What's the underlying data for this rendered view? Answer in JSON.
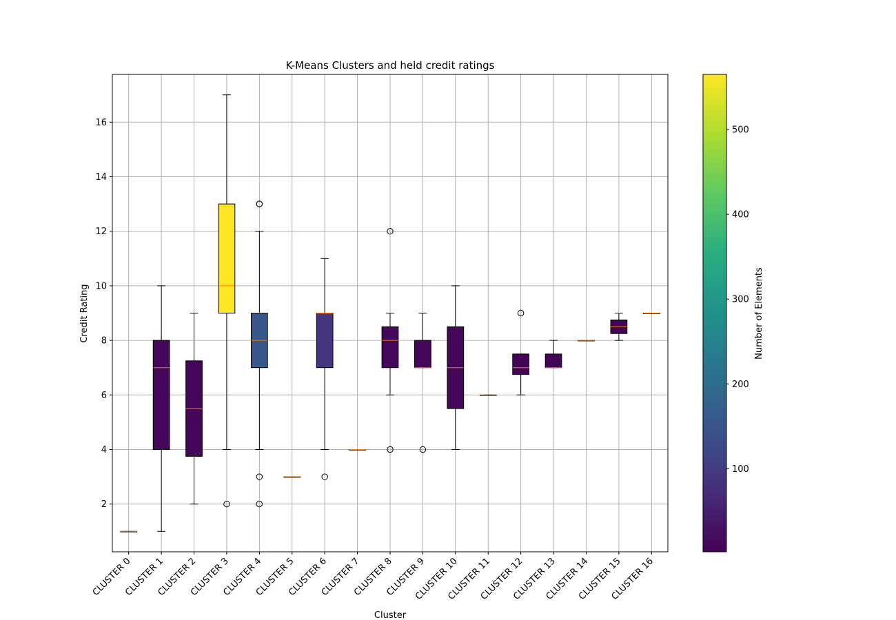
{
  "chart_data": {
    "type": "box",
    "title": "K-Means Clusters and held credit ratings",
    "xlabel": "Cluster",
    "ylabel": "Credit Rating",
    "ylim": [
      0.25,
      17.75
    ],
    "yticks": [
      2,
      4,
      6,
      8,
      10,
      12,
      14,
      16
    ],
    "grid": true,
    "categories": [
      "CLUSTER 0",
      "CLUSTER 1",
      "CLUSTER 2",
      "CLUSTER 3",
      "CLUSTER 4",
      "CLUSTER 5",
      "CLUSTER 6",
      "CLUSTER 7",
      "CLUSTER 8",
      "CLUSTER 9",
      "CLUSTER 10",
      "CLUSTER 11",
      "CLUSTER 12",
      "CLUSTER 13",
      "CLUSTER 14",
      "CLUSTER 15",
      "CLUSTER 16"
    ],
    "boxes": [
      {
        "whislo": 1,
        "q1": 1,
        "med": 1,
        "q3": 1,
        "whishi": 1,
        "fliers": [],
        "count": 5
      },
      {
        "whislo": 1,
        "q1": 4,
        "med": 7,
        "q3": 8,
        "whishi": 10,
        "fliers": [],
        "count": 10
      },
      {
        "whislo": 2,
        "q1": 3.75,
        "med": 5.5,
        "q3": 7.25,
        "whishi": 9,
        "fliers": [],
        "count": 10
      },
      {
        "whislo": 4,
        "q1": 9,
        "med": 10,
        "q3": 13,
        "whishi": 17,
        "fliers": [
          2
        ],
        "count": 565
      },
      {
        "whislo": 4,
        "q1": 7,
        "med": 8,
        "q3": 9,
        "whishi": 12,
        "fliers": [
          13,
          13,
          3,
          2
        ],
        "count": 155
      },
      {
        "whislo": 3,
        "q1": 3,
        "med": 3,
        "q3": 3,
        "whishi": 3,
        "fliers": [],
        "count": 5
      },
      {
        "whislo": 4,
        "q1": 7,
        "med": 9,
        "q3": 9,
        "whishi": 11,
        "fliers": [
          3
        ],
        "count": 85
      },
      {
        "whislo": 4,
        "q1": 4,
        "med": 4,
        "q3": 4,
        "whishi": 4,
        "fliers": [],
        "count": 5
      },
      {
        "whislo": 6,
        "q1": 7,
        "med": 8,
        "q3": 8.5,
        "whishi": 9,
        "fliers": [
          12,
          4
        ],
        "count": 12
      },
      {
        "whislo": 7,
        "q1": 7,
        "med": 7,
        "q3": 8,
        "whishi": 9,
        "fliers": [
          4
        ],
        "count": 10
      },
      {
        "whislo": 4,
        "q1": 5.5,
        "med": 7,
        "q3": 8.5,
        "whishi": 10,
        "fliers": [],
        "count": 10
      },
      {
        "whislo": 6,
        "q1": 6,
        "med": 6,
        "q3": 6,
        "whishi": 6,
        "fliers": [],
        "count": 5
      },
      {
        "whislo": 6,
        "q1": 6.75,
        "med": 7,
        "q3": 7.5,
        "whishi": 7.5,
        "fliers": [
          9
        ],
        "count": 8
      },
      {
        "whislo": 7,
        "q1": 7,
        "med": 7,
        "q3": 7.5,
        "whishi": 8,
        "fliers": [],
        "count": 6
      },
      {
        "whislo": 8,
        "q1": 8,
        "med": 8,
        "q3": 8,
        "whishi": 8,
        "fliers": [],
        "count": 5
      },
      {
        "whislo": 8,
        "q1": 8.25,
        "med": 8.5,
        "q3": 8.75,
        "whishi": 9,
        "fliers": [],
        "count": 6
      },
      {
        "whislo": 9,
        "q1": 9,
        "med": 9,
        "q3": 9,
        "whishi": 9,
        "fliers": [],
        "count": 5
      }
    ],
    "colorbar": {
      "label": "Number of Elements",
      "range": [
        2,
        565
      ],
      "ticks": [
        100,
        200,
        300,
        400,
        500
      ],
      "colormap": "viridis"
    },
    "colors": {
      "median": "#ff7f0e",
      "whisker": "#000000",
      "grid": "#b0b0b0"
    }
  }
}
